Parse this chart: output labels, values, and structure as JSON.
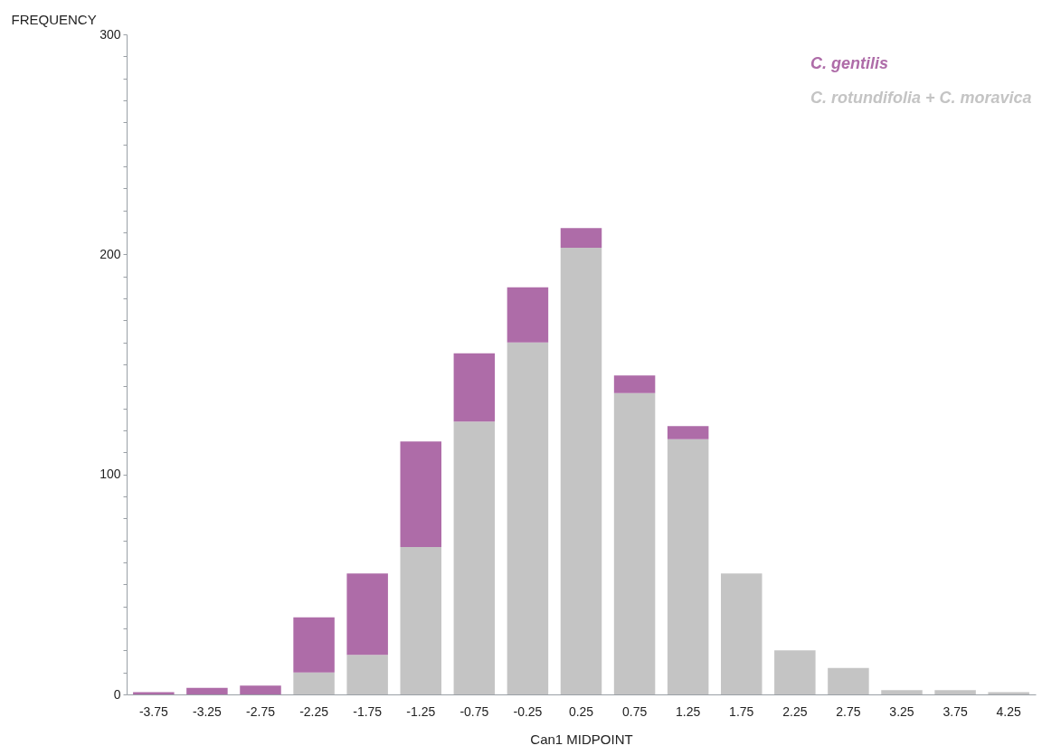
{
  "chart_data": {
    "type": "bar",
    "xlabel": "Can1 MIDPOINT",
    "ylabel": "FREQUENCY",
    "categories": [
      "-3.75",
      "-3.25",
      "-2.75",
      "-2.25",
      "-1.75",
      "-1.25",
      "-0.75",
      "-0.25",
      "0.25",
      "0.75",
      "1.25",
      "1.75",
      "2.25",
      "2.75",
      "3.25",
      "3.75",
      "4.25"
    ],
    "series": [
      {
        "name": "C. rotundifolia + C. moravica",
        "color": "#c4c4c4",
        "values": [
          null,
          null,
          null,
          10,
          18,
          67,
          124,
          160,
          203,
          137,
          116,
          55,
          20,
          12,
          2,
          2,
          1
        ]
      },
      {
        "name": "C. gentilis",
        "color": "#ae6ca8",
        "values": [
          1,
          3,
          4,
          25,
          37,
          48,
          31,
          25,
          9,
          8,
          6,
          null,
          null,
          null,
          null,
          null,
          null
        ]
      }
    ],
    "stacked": true,
    "ylim": [
      0,
      300
    ],
    "yticks": [
      0,
      {
        "value": 10,
        "label": null
      },
      {
        "value": 20,
        "label": null
      },
      {
        "value": 30,
        "label": null
      },
      {
        "value": 40,
        "label": null
      },
      {
        "value": 50,
        "label": null
      },
      {
        "value": 60,
        "label": null
      },
      {
        "value": 70,
        "label": null
      },
      {
        "value": 80,
        "label": null
      },
      {
        "value": 90,
        "label": null
      },
      100,
      {
        "value": 110,
        "label": null
      },
      {
        "value": 120,
        "label": null
      },
      {
        "value": 130,
        "label": null
      },
      {
        "value": 140,
        "label": null
      },
      {
        "value": 150,
        "label": null
      },
      {
        "value": 160,
        "label": null
      },
      {
        "value": 170,
        "label": null
      },
      {
        "value": 180,
        "label": null
      },
      {
        "value": 190,
        "label": null
      },
      200,
      {
        "value": 210,
        "label": null
      },
      {
        "value": 220,
        "label": null
      },
      {
        "value": 230,
        "label": null
      },
      {
        "value": 240,
        "label": null
      },
      {
        "value": 250,
        "label": null
      },
      {
        "value": 260,
        "label": null
      },
      {
        "value": 270,
        "label": null
      },
      {
        "value": 280,
        "label": null
      },
      {
        "value": 290,
        "label": null
      },
      300
    ],
    "legend": "top right"
  }
}
